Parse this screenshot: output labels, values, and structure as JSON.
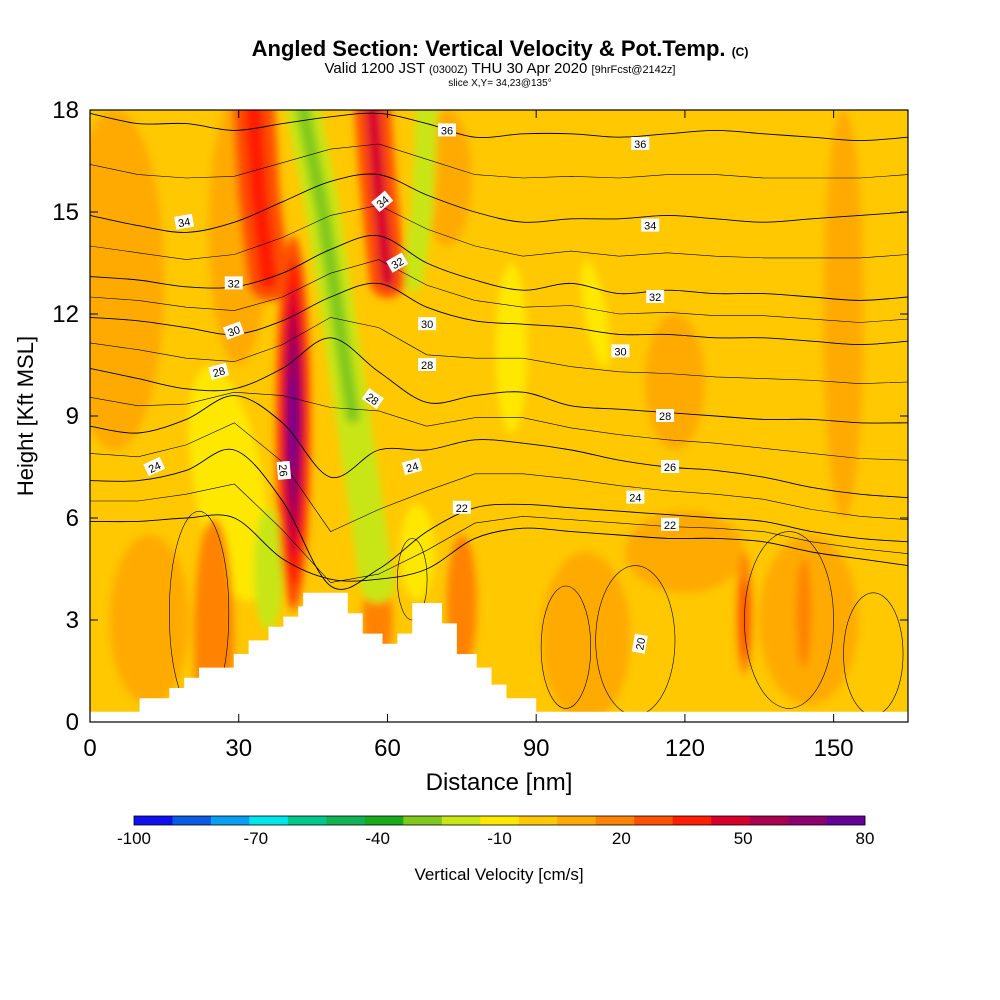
{
  "header": {
    "title": "Angled Section: Vertical Velocity & Pot.Temp.",
    "title_suffix": "(C)",
    "valid_prefix": "Valid 1200 JST",
    "valid_utc": "(0300Z)",
    "valid_date": "THU 30 Apr 2020",
    "forecast": "[9hrFcst@2142z]",
    "slice": "slice X,Y= 34,23@135°"
  },
  "chart_data": {
    "type": "heatmap",
    "title": "Angled Section: Vertical Velocity & Pot.Temp.",
    "xlabel": "Distance [nm]",
    "ylabel": "Height [Kft MSL]",
    "xlim": [
      0,
      165
    ],
    "ylim": [
      0,
      18
    ],
    "x_ticks": [
      0,
      30,
      60,
      90,
      120,
      150
    ],
    "y_ticks": [
      0,
      3,
      6,
      9,
      12,
      15,
      18
    ],
    "x_tick_labels": [
      "0",
      "30",
      "60",
      "90",
      "120",
      "150"
    ],
    "y_tick_labels": [
      "0",
      "3",
      "6",
      "9",
      "12",
      "15",
      "18"
    ],
    "colorbar": {
      "label": "Vertical Velocity [cm/s]",
      "levels": [
        -100,
        -90,
        -80,
        -70,
        -60,
        -50,
        -40,
        -30,
        -20,
        -10,
        0,
        10,
        20,
        30,
        40,
        50,
        60,
        70,
        80
      ],
      "tick_values": [
        -100,
        -70,
        -40,
        -10,
        20,
        50,
        80
      ],
      "tick_labels": [
        "-100",
        "-70",
        "-40",
        "-10",
        "20",
        "50",
        "80"
      ],
      "colors": [
        "#1010ee",
        "#0a5ae6",
        "#07a0f0",
        "#00e4ec",
        "#00c88c",
        "#10b454",
        "#18aa18",
        "#80c81c",
        "#c8e614",
        "#ffe800",
        "#ffc800",
        "#ffaa00",
        "#ff8200",
        "#ff5000",
        "#ff1e00",
        "#d7002d",
        "#aa0050",
        "#8c006e",
        "#640096"
      ]
    },
    "updraft_cores": [
      {
        "x": 41,
        "y": 9,
        "value": 80
      },
      {
        "x": 34,
        "y": 16.5,
        "value": 40
      },
      {
        "x": 58,
        "y": 16,
        "value": 50
      },
      {
        "x": 132,
        "y": 3,
        "value": 20
      }
    ],
    "downdraft_bands": [
      {
        "x": 46,
        "y": 13,
        "value": -40
      },
      {
        "x": 68,
        "y": 16.5,
        "value": -30
      },
      {
        "x": 85,
        "y": 11,
        "value": -20
      },
      {
        "x": 102,
        "y": 12,
        "value": -20
      },
      {
        "x": 28,
        "y": 7,
        "value": -20
      }
    ],
    "terrain": [
      {
        "x": 0,
        "h": 0.3
      },
      {
        "x": 10,
        "h": 0.7
      },
      {
        "x": 16,
        "h": 1.0
      },
      {
        "x": 19,
        "h": 1.3
      },
      {
        "x": 22,
        "h": 1.6
      },
      {
        "x": 29,
        "h": 2.0
      },
      {
        "x": 32,
        "h": 2.4
      },
      {
        "x": 36,
        "h": 2.8
      },
      {
        "x": 39,
        "h": 3.1
      },
      {
        "x": 42,
        "h": 3.4
      },
      {
        "x": 43,
        "h": 3.8
      },
      {
        "x": 52,
        "h": 3.2
      },
      {
        "x": 55,
        "h": 2.6
      },
      {
        "x": 59,
        "h": 2.3
      },
      {
        "x": 62,
        "h": 2.6
      },
      {
        "x": 65,
        "h": 3.5
      },
      {
        "x": 71,
        "h": 2.9
      },
      {
        "x": 74,
        "h": 2.0
      },
      {
        "x": 78,
        "h": 1.6
      },
      {
        "x": 81,
        "h": 1.1
      },
      {
        "x": 84,
        "h": 0.7
      },
      {
        "x": 90,
        "h": 0.3
      },
      {
        "x": 165,
        "h": 0.3
      }
    ],
    "isentropes": [
      {
        "theta": 36,
        "y": [
          17.9,
          17.6,
          17.6,
          17.4,
          17.6,
          17.8,
          17.9,
          17.6,
          17.2,
          17.3,
          17.3,
          17.2,
          17.3,
          17.4,
          17.3,
          17.2,
          17.1,
          17.2
        ],
        "label_x": 143
      },
      {
        "theta": 34,
        "y": [
          14.9,
          14.6,
          14.4,
          14.7,
          15.3,
          15.9,
          16.1,
          15.5,
          15.0,
          14.7,
          14.8,
          14.8,
          14.9,
          14.8,
          14.7,
          14.8,
          14.9,
          15.0
        ],
        "label_x": 18
      },
      {
        "theta": 32,
        "y": [
          13.1,
          13.0,
          12.8,
          12.8,
          13.2,
          13.9,
          14.3,
          13.5,
          13.0,
          12.7,
          12.9,
          12.6,
          12.7,
          12.6,
          12.6,
          12.5,
          12.4,
          12.5
        ],
        "label_x": 29
      },
      {
        "theta": 30,
        "y": [
          11.9,
          11.8,
          11.6,
          11.4,
          11.8,
          12.5,
          12.9,
          12.2,
          11.8,
          11.7,
          11.6,
          11.4,
          11.4,
          11.3,
          11.3,
          11.2,
          11.1,
          11.2
        ],
        "label_x": 31
      },
      {
        "theta": 28,
        "y": [
          10.4,
          10.1,
          9.8,
          9.8,
          10.4,
          11.3,
          10.3,
          9.4,
          9.6,
          9.7,
          9.3,
          9.2,
          9.1,
          9.0,
          8.9,
          8.9,
          8.8,
          8.8
        ],
        "label_x": 26
      },
      {
        "theta": 26,
        "y": [
          8.7,
          8.5,
          8.9,
          9.6,
          8.8,
          7.2,
          8.0,
          8.0,
          8.3,
          8.2,
          8.0,
          7.7,
          7.5,
          7.4,
          7.2,
          6.9,
          6.7,
          6.6
        ],
        "label_x": 118
      },
      {
        "theta": 24,
        "y": [
          7.1,
          7.1,
          7.4,
          8.0,
          6.5,
          4.0,
          4.5,
          5.6,
          6.3,
          6.4,
          6.3,
          6.2,
          6.1,
          6.0,
          5.9,
          5.6,
          5.4,
          5.3
        ],
        "label_x": 13
      },
      {
        "theta": 22,
        "y": [
          5.9,
          5.9,
          6.0,
          6.0,
          4.8,
          4.2,
          4.2,
          4.5,
          5.4,
          5.7,
          5.6,
          5.5,
          5.4,
          5.4,
          5.3,
          5.0,
          4.8,
          4.6
        ],
        "label_x": 75
      }
    ],
    "contour_labels": [
      {
        "text": "36",
        "x": 72,
        "y": 17.4,
        "rot": 0
      },
      {
        "text": "36",
        "x": 111,
        "y": 17.0,
        "rot": 0
      },
      {
        "text": "34",
        "x": 19,
        "y": 14.7,
        "rot": -10
      },
      {
        "text": "34",
        "x": 59,
        "y": 15.3,
        "rot": -40
      },
      {
        "text": "34",
        "x": 113,
        "y": 14.6,
        "rot": 0
      },
      {
        "text": "32",
        "x": 29,
        "y": 12.9,
        "rot": 0
      },
      {
        "text": "32",
        "x": 62,
        "y": 13.5,
        "rot": -30
      },
      {
        "text": "32",
        "x": 114,
        "y": 12.5,
        "rot": 0
      },
      {
        "text": "30",
        "x": 29,
        "y": 11.5,
        "rot": -20
      },
      {
        "text": "30",
        "x": 68,
        "y": 11.7,
        "rot": 0
      },
      {
        "text": "30",
        "x": 107,
        "y": 10.9,
        "rot": 0
      },
      {
        "text": "28",
        "x": 26,
        "y": 10.3,
        "rot": -15
      },
      {
        "text": "28",
        "x": 68,
        "y": 10.5,
        "rot": 0
      },
      {
        "text": "28",
        "x": 116,
        "y": 9.0,
        "rot": 0
      },
      {
        "text": "28",
        "x": 57,
        "y": 9.5,
        "rot": 35
      },
      {
        "text": "26",
        "x": 39,
        "y": 7.4,
        "rot": 85
      },
      {
        "text": "26",
        "x": 117,
        "y": 7.5,
        "rot": 0
      },
      {
        "text": "24",
        "x": 13,
        "y": 7.5,
        "rot": -25
      },
      {
        "text": "24",
        "x": 65,
        "y": 7.5,
        "rot": -15
      },
      {
        "text": "24",
        "x": 110,
        "y": 6.6,
        "rot": 0
      },
      {
        "text": "22",
        "x": 75,
        "y": 6.3,
        "rot": 0
      },
      {
        "text": "22",
        "x": 117,
        "y": 5.8,
        "rot": 0
      },
      {
        "text": "20",
        "x": 111,
        "y": 2.3,
        "rot": -80
      }
    ]
  }
}
